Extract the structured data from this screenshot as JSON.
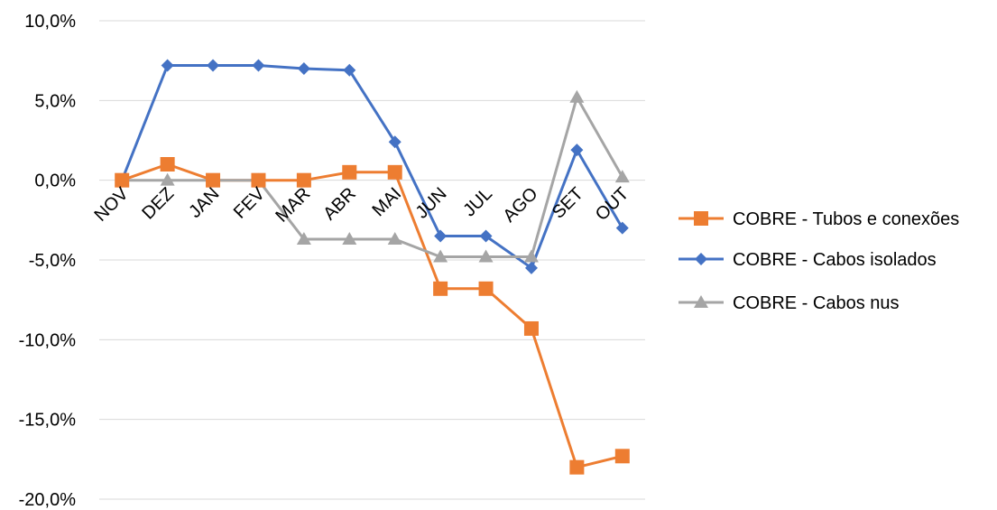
{
  "chart_data": {
    "type": "line",
    "categories": [
      "NOV",
      "DEZ",
      "JAN",
      "FEV",
      "MAR",
      "ABR",
      "MAI",
      "JUN",
      "JUL",
      "AGO",
      "SET",
      "OUT"
    ],
    "ylim": [
      -20,
      10
    ],
    "yticks": [
      10,
      5,
      0,
      -5,
      -10,
      -15,
      -20
    ],
    "ytick_labels": [
      "10,0%",
      "5,0%",
      "0,0%",
      "-5,0%",
      "-10,0%",
      "-15,0%",
      "-20,0%"
    ],
    "grid": true,
    "legend_position": "right",
    "series": [
      {
        "name": "COBRE - Tubos e conexões",
        "color": "#ED7D31",
        "marker": "square",
        "values": [
          0.0,
          1.0,
          0.0,
          0.0,
          0.0,
          0.5,
          0.5,
          -6.8,
          -6.8,
          -9.3,
          -18.0,
          -17.3
        ]
      },
      {
        "name": "COBRE - Cabos isolados",
        "color": "#4472C4",
        "marker": "diamond",
        "values": [
          0.0,
          7.2,
          7.2,
          7.2,
          7.0,
          6.9,
          2.4,
          -3.5,
          -3.5,
          -5.5,
          1.9,
          -3.0
        ]
      },
      {
        "name": "COBRE - Cabos nus",
        "color": "#A5A5A5",
        "marker": "triangle",
        "values": [
          0.0,
          0.0,
          0.0,
          0.0,
          -3.7,
          -3.7,
          -3.7,
          -4.8,
          -4.8,
          -4.8,
          5.2,
          0.2
        ]
      }
    ]
  }
}
